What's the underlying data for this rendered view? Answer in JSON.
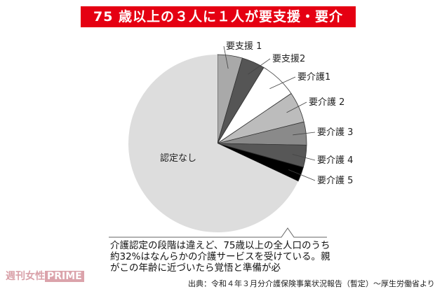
{
  "chart_data": {
    "type": "pie",
    "title": "75 歳以上の３人に１人が要支援・要介護！",
    "start_angle": "top",
    "direction": "clockwise",
    "slices": [
      {
        "label": "要支援 1",
        "value": 4.5,
        "color": "#a9a9a9"
      },
      {
        "label": "要支援2",
        "value": 4.2,
        "color": "#555555"
      },
      {
        "label": "要介護1",
        "value": 6.8,
        "color": "#ffffff"
      },
      {
        "label": "要介護 2",
        "value": 5.6,
        "color": "#bcbcbc"
      },
      {
        "label": "要介護 3",
        "value": 4.2,
        "color": "#8a8a8a"
      },
      {
        "label": "要介護 4",
        "value": 4.0,
        "color": "#575757"
      },
      {
        "label": "要介護 5",
        "value": 2.7,
        "color": "#000000"
      },
      {
        "label": "認定なし",
        "value": 68.0,
        "color": "#dddddd"
      }
    ]
  },
  "caption": "介護認定の段階は違えど、75歳以上の全人口のうち約32%はなんらかの介護サービスを受けている。親がこの年齢に近づいたら覚悟と準備が必",
  "source": "出典：令和４年３月分介護保険事業状況報告（暫定）〜厚生労働省より",
  "logo": {
    "text1": "週刊女性",
    "text2": "PRIME"
  },
  "accent": "#e50012"
}
